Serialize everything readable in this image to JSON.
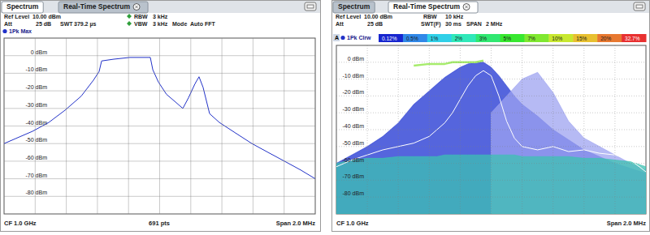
{
  "chart_data": [
    {
      "type": "line",
      "annotations": [
        "Spectrum",
        "Real-Time Spectrum",
        "Ref Level",
        "10.00 dBm",
        "RBW",
        "3 kHz",
        "Att",
        "25 dB",
        "SWT",
        "379.2 µs",
        "VBW",
        "3 kHz",
        "Mode",
        "Auto FFT",
        "CF 1.0 GHz",
        "691 pts",
        "Span 2.0 MHz"
      ],
      "x": [
        999.0,
        999.078,
        999.183,
        999.287,
        999.392,
        999.496,
        999.574,
        999.611,
        999.627,
        999.705,
        999.809,
        999.94,
        999.956,
        999.992,
        1000.044,
        1000.097,
        1000.149,
        1000.185,
        1000.227,
        1000.253,
        1000.279,
        1000.321,
        1000.384,
        1000.488,
        1000.593,
        1000.697,
        1000.802,
        1000.906,
        1001.0
      ],
      "series": [
        {
          "name": "1Pk Max",
          "type": "line",
          "color": "#2232c8",
          "values": [
            -50,
            -47,
            -43,
            -38,
            -31,
            -23,
            -14,
            -9,
            -3,
            -2,
            -1,
            -1,
            -8,
            -15,
            -22,
            -26,
            -30,
            -24,
            -16,
            -12,
            -18,
            -33,
            -38,
            -44,
            -50,
            -55,
            -60,
            -65,
            -70
          ]
        }
      ],
      "xlim": [
        999.0,
        1001.0
      ],
      "xticks": [
        999.2,
        999.4,
        999.6,
        999.8,
        1000.0,
        1000.2,
        1000.4,
        1000.6,
        1000.8
      ],
      "ylim": [
        -90,
        10
      ],
      "yticks": [
        {
          "value": 0,
          "label": "0 dBm"
        },
        {
          "value": -10,
          "label": "-10 dBm"
        },
        {
          "value": -20,
          "label": "-20 dBm"
        },
        {
          "value": -30,
          "label": "-30 dBm"
        },
        {
          "value": -40,
          "label": "-40 dBm"
        },
        {
          "value": -50,
          "label": "-50 dBm"
        },
        {
          "value": -60,
          "label": "-60 dBm"
        },
        {
          "value": -70,
          "label": "-70 dBm"
        },
        {
          "value": -80,
          "label": "-80 dBm"
        }
      ],
      "grid": true,
      "tick_labels": "y"
    },
    {
      "type": "area",
      "annotations": [
        "Spectrum",
        "Real-Time Spectrum",
        "Ref Level",
        "10.00 dBm",
        "RBW",
        "10 kHz",
        "Att",
        "25 dB",
        "SWT(F)",
        "30 ms",
        "SPAN",
        "2 MHz",
        "A",
        "CF 1.0 GHz",
        "Span 2.0 MHz"
      ],
      "x": [
        999.0,
        999.1,
        999.2,
        999.3,
        999.4,
        999.5,
        999.6,
        999.65,
        999.7,
        999.75,
        999.8,
        999.85,
        999.9,
        999.95,
        1000.0,
        1000.05,
        1000.1,
        1000.15,
        1000.2,
        1000.3,
        1000.4,
        1000.5,
        1000.6,
        1000.7,
        1000.8,
        1000.9,
        1001.0
      ],
      "series": [
        {
          "type": "area",
          "color": "#2a3ed4",
          "values": [
            -60,
            -55,
            -50,
            -44,
            -36,
            -25,
            -17,
            -13,
            -9,
            -6,
            -3,
            -1,
            0,
            0,
            -3,
            -8,
            -14,
            -20,
            -25,
            -32,
            -40,
            -46,
            -52,
            -56,
            -60,
            -63,
            -66
          ]
        },
        {
          "type": "area",
          "color": "#9da3f0",
          "values": [
            null,
            null,
            null,
            null,
            null,
            null,
            null,
            null,
            null,
            null,
            null,
            null,
            null,
            null,
            -30,
            -25,
            -20,
            -15,
            -10,
            -6,
            -18,
            -35,
            -45,
            -50,
            -55,
            -60,
            -64
          ]
        },
        {
          "type": "area",
          "color": "#3cc2b2",
          "values": [
            -60,
            -58,
            -57,
            -57,
            -56,
            -56,
            -56,
            -56,
            -55,
            -55,
            -55,
            -55,
            -55,
            -55,
            -55,
            -55,
            -55,
            -55,
            -56,
            -56,
            -56,
            -56,
            -57,
            -57,
            -58,
            -59,
            -62
          ]
        },
        {
          "type": "line",
          "color": "#a6ec6c",
          "values": [
            null,
            null,
            null,
            null,
            null,
            -2,
            -1,
            -1,
            -1,
            0,
            0,
            0,
            0,
            1,
            null,
            null,
            null,
            null,
            null,
            null,
            null,
            null,
            null,
            null,
            null,
            null,
            null
          ]
        },
        {
          "name": "1Pk Clrw",
          "type": "line",
          "color": "#ffffff",
          "values": [
            -62,
            -58,
            -55,
            -52,
            -50,
            -48,
            -44,
            -40,
            -36,
            -30,
            -22,
            -14,
            -8,
            -5,
            -8,
            -20,
            -35,
            -45,
            -50,
            -52,
            -50,
            -53,
            -52,
            -54,
            -55,
            -58,
            -65
          ]
        }
      ],
      "colorbar_ticks": [
        {
          "value": 0.12,
          "label": "0.12%"
        },
        {
          "value": 0.5,
          "label": "0.5%"
        },
        {
          "value": 1,
          "label": "1%"
        },
        {
          "value": 2,
          "label": "2%"
        },
        {
          "value": 3,
          "label": "3%"
        },
        {
          "value": 5,
          "label": "5%"
        },
        {
          "value": 7,
          "label": "7%"
        },
        {
          "value": 10,
          "label": "10%"
        },
        {
          "value": 15,
          "label": "15%"
        },
        {
          "value": 20,
          "label": "20%"
        },
        {
          "value": 32.7,
          "label": "32.7%"
        }
      ],
      "xlim": [
        999.0,
        1001.0
      ],
      "xticks": [
        999.2,
        999.4,
        999.6,
        999.8,
        1000.0,
        1000.2,
        1000.4,
        1000.6,
        1000.8
      ],
      "ylim": [
        -90,
        10
      ],
      "yticks": [
        {
          "value": 0,
          "label": "0 dBm"
        },
        {
          "value": -10,
          "label": "-10 dBm"
        },
        {
          "value": -20,
          "label": "-20 dBm"
        },
        {
          "value": -30,
          "label": "-30 dBm"
        },
        {
          "value": -40,
          "label": "-40 dBm"
        },
        {
          "value": -50,
          "label": "-50 dBm"
        },
        {
          "value": -60,
          "label": "-60 dBm"
        },
        {
          "value": -70,
          "label": "-70 dBm"
        },
        {
          "value": -80,
          "label": "-80 dBm"
        }
      ],
      "grid": true,
      "tick_labels": "y"
    }
  ]
}
